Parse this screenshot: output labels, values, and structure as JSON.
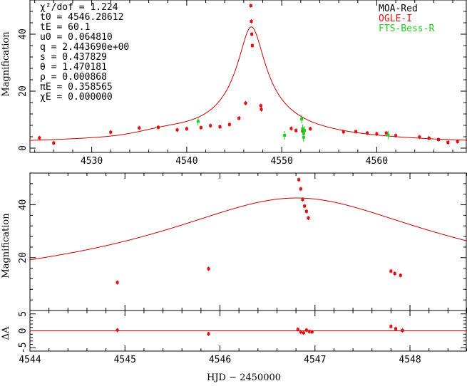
{
  "colors": {
    "moa": "#dd1111",
    "ogle": "#dd1111",
    "fts": "#22cc22",
    "model": "#cc0000",
    "axis": "#000000"
  },
  "params": [
    "χ²/dof = 1.224",
    "t0 = 4546.28612",
    "tE = 60.1",
    "u0 = 0.064810",
    "q = 2.443690e+00",
    "s = 0.437829",
    "θ = 1.470181",
    "ρ = 0.000868",
    "πE = 0.358565",
    "χE = 0.000000"
  ],
  "legend": [
    {
      "label": "MOA-Red",
      "color": "#000000"
    },
    {
      "label": "OGLE-I",
      "color": "#dd1111"
    },
    {
      "label": "FTS-Bess-R",
      "color": "#22cc22"
    }
  ],
  "xlabel": "HJD − 2450000",
  "chart_data": [
    {
      "type": "scatter",
      "panel": "top",
      "ylabel": "Magnification",
      "xlim": [
        4523.5,
        4569.5
      ],
      "ylim": [
        -1.5,
        52
      ],
      "xticks": [
        4530,
        4540,
        4550,
        4560
      ],
      "yticks": [
        0,
        20,
        40
      ],
      "series": [
        {
          "name": "MOA/OGLE",
          "color": "#dd1111",
          "x": [
            4524.5,
            4526.0,
            4532.0,
            4535.0,
            4537.0,
            4539.0,
            4540.0,
            4541.5,
            4542.5,
            4543.5,
            4544.5,
            4545.5,
            4546.2,
            4546.75,
            4546.8,
            4546.85,
            4546.9,
            4547.8,
            4547.85,
            4551.0,
            4551.5,
            4552.2,
            4553.0,
            4556.5,
            4557.8,
            4559.0,
            4560.0,
            4561.0,
            4562.0,
            4564.5,
            4565.5,
            4566.5,
            4567.5,
            4568.5
          ],
          "y": [
            3.6,
            1.8,
            5.6,
            7.1,
            7.3,
            6.4,
            6.8,
            7.2,
            7.9,
            7.5,
            8.3,
            10.5,
            15.8,
            50,
            44.5,
            40.0,
            36.0,
            14.9,
            13.6,
            6.9,
            6.2,
            6.0,
            6.8,
            5.7,
            5.8,
            5.3,
            5.0,
            5.3,
            4.4,
            3.9,
            3.5,
            3.0,
            2.0,
            2.3
          ]
        },
        {
          "name": "FTS-Bess-R",
          "color": "#22cc22",
          "x": [
            4541.2,
            4550.3,
            4552.1,
            4552.2,
            4552.3,
            4552.3,
            4552.4,
            4561.2
          ],
          "y": [
            9.4,
            4.5,
            10.2,
            6.8,
            5.1,
            3.8,
            6.2,
            4.6
          ]
        }
      ]
    },
    {
      "type": "scatter",
      "panel": "middle",
      "ylabel": "Magnification",
      "xlim": [
        4544,
        4548.6
      ],
      "ylim": [
        0,
        52
      ],
      "xticks": [
        4544,
        4545,
        4546,
        4547,
        4548
      ],
      "yticks": [
        20,
        40
      ],
      "series": [
        {
          "name": "MOA/OGLE",
          "color": "#dd1111",
          "x": [
            4544.92,
            4545.88,
            4546.83,
            4546.85,
            4546.87,
            4546.89,
            4546.91,
            4546.93,
            4547.8,
            4547.84,
            4547.9
          ],
          "y": [
            10.6,
            15.8,
            49.5,
            46.0,
            42.0,
            39.5,
            37.5,
            35.0,
            14.9,
            14.0,
            13.3
          ]
        }
      ]
    },
    {
      "type": "scatter",
      "panel": "residuals",
      "ylabel": "ΔA",
      "xlim": [
        4544,
        4548.6
      ],
      "ylim": [
        -6,
        6
      ],
      "xticks": [
        4544,
        4545,
        4546,
        4547,
        4548
      ],
      "xticklabels": [
        "4544",
        "4545",
        "4546",
        "4547",
        "4548"
      ],
      "yticks": [
        -5,
        0,
        5
      ],
      "series": [
        {
          "name": "residuals",
          "color": "#dd1111",
          "x": [
            4544.92,
            4545.88,
            4546.82,
            4546.85,
            4546.88,
            4546.91,
            4546.94,
            4546.97,
            4547.8,
            4547.85,
            4547.92
          ],
          "y": [
            0.2,
            -0.9,
            0.4,
            -0.3,
            -0.6,
            0.2,
            -0.2,
            -0.3,
            1.3,
            0.6,
            0.1
          ]
        }
      ]
    }
  ]
}
